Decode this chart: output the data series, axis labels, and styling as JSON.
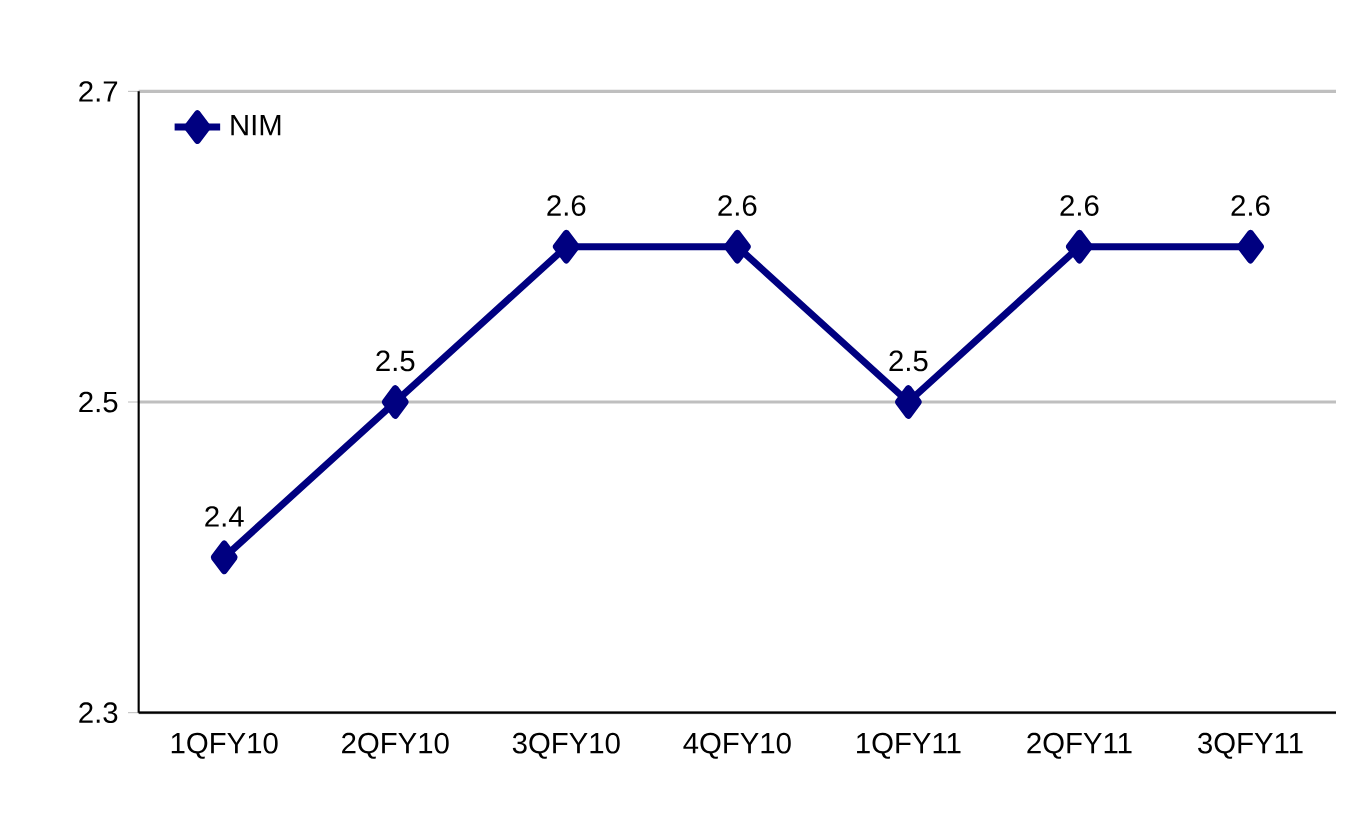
{
  "chart_data": {
    "type": "line",
    "categories": [
      "1QFY10",
      "2QFY10",
      "3QFY10",
      "4QFY10",
      "1QFY11",
      "2QFY11",
      "3QFY11"
    ],
    "series": [
      {
        "name": "NIM",
        "color": "#000080",
        "values": [
          2.4,
          2.5,
          2.6,
          2.6,
          2.5,
          2.6,
          2.6
        ]
      }
    ],
    "ylim": [
      2.3,
      2.7
    ],
    "yticks": [
      2.3,
      2.5,
      2.7
    ],
    "grid": "y",
    "legend": "top left",
    "marker": "diamond",
    "line_style": "solid",
    "data_labels": true
  }
}
